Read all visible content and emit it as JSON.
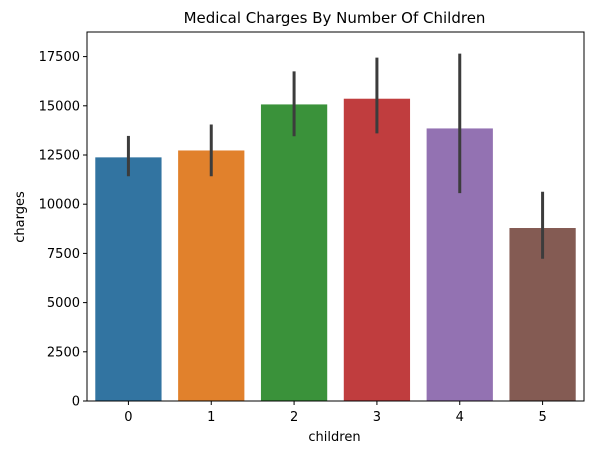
{
  "chart_data": {
    "type": "bar",
    "title": "Medical Charges By Number Of Children",
    "xlabel": "children",
    "ylabel": "charges",
    "categories": [
      "0",
      "1",
      "2",
      "3",
      "4",
      "5"
    ],
    "values": [
      12380,
      12730,
      15070,
      15360,
      13850,
      8790
    ],
    "error_low": [
      11420,
      11420,
      13450,
      13600,
      10560,
      7230
    ],
    "error_high": [
      13470,
      14050,
      16750,
      17450,
      17650,
      10630
    ],
    "colors": [
      "#3274a1",
      "#e1812c",
      "#3a923a",
      "#c03d3e",
      "#9372b2",
      "#845b53"
    ],
    "errorbar_color": "#3c3c3c",
    "ylim": [
      0,
      18750
    ],
    "yticks": [
      0,
      2500,
      5000,
      7500,
      10000,
      12500,
      15000,
      17500
    ],
    "grid": false,
    "legend": "none"
  }
}
